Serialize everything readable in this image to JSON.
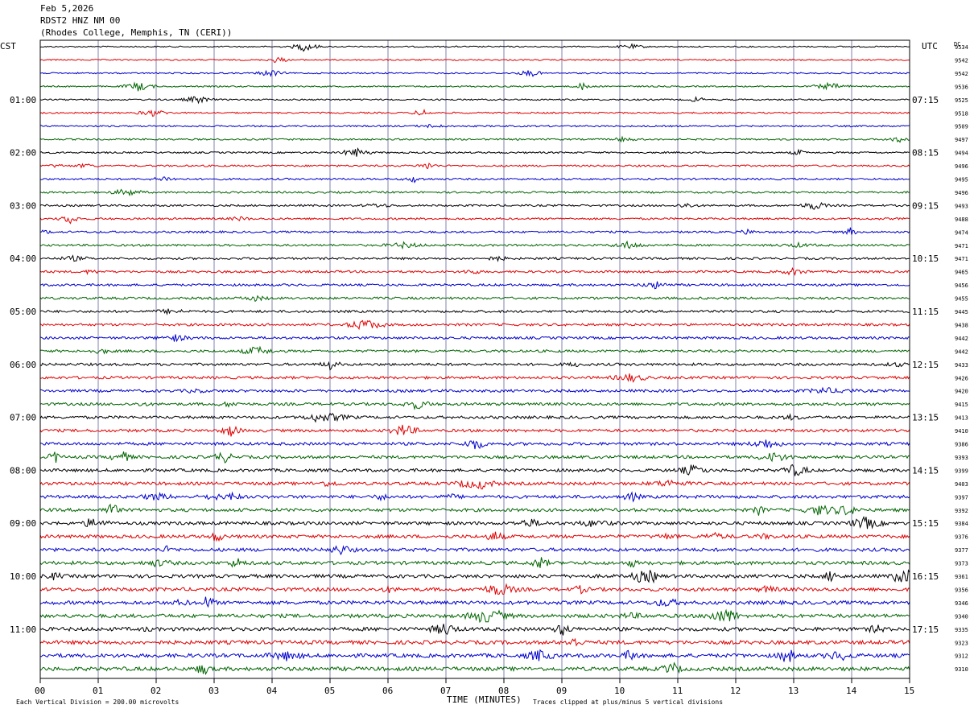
{
  "header": {
    "date": "Feb 5,2026",
    "station": "RDST2 HNZ NM 00",
    "location": "(Rhodes College, Memphis, TN (CERI))"
  },
  "labels": {
    "left_zone": "CST",
    "right_zone": "UTC",
    "dc": "DC",
    "x_title": "TIME (MINUTES)",
    "scale_note": "Each Vertical Division =  200.00 microvolts",
    "clip_note": "Traces clipped at plus/minus 5 vertical divisions"
  },
  "colors": [
    "#000000",
    "#e00000",
    "#0000cc",
    "#006400"
  ],
  "chart_data": {
    "type": "line",
    "title": "RDST2 HNZ NM 00",
    "xlabel": "TIME (MINUTES)",
    "ylabel": "",
    "xlim": [
      0,
      15
    ],
    "x_ticks": [
      "00",
      "01",
      "02",
      "03",
      "04",
      "05",
      "06",
      "07",
      "08",
      "09",
      "10",
      "11",
      "12",
      "13",
      "14",
      "15"
    ],
    "hour_labels_cst": [
      "01:00",
      "02:00",
      "03:00",
      "04:00",
      "05:00",
      "06:00",
      "07:00",
      "08:00",
      "09:00",
      "10:00",
      "11:00"
    ],
    "hour_labels_utc": [
      "07:15",
      "08:15",
      "09:15",
      "10:15",
      "11:15",
      "12:15",
      "13:15",
      "14:15",
      "15:15",
      "16:15",
      "17:15"
    ],
    "dc_offsets": [
      9534,
      9542,
      9542,
      9536,
      9525,
      9518,
      9509,
      9497,
      9494,
      9496,
      9495,
      9496,
      9493,
      9488,
      9474,
      9471,
      9471,
      9465,
      9456,
      9455,
      9445,
      9438,
      9442,
      9442,
      9433,
      9426,
      9420,
      9415,
      9413,
      9410,
      9386,
      9393,
      9399,
      9403,
      9397,
      9392,
      9384,
      9376,
      9377,
      9373,
      9361,
      9356,
      9346,
      9340,
      9335,
      9323,
      9312,
      9310
    ],
    "trace_colors": [
      "black",
      "red",
      "blue",
      "green"
    ],
    "scale": "Each Vertical Division = 200.00 microvolts",
    "clip": "Traces clipped at plus/minus 5 vertical divisions"
  }
}
